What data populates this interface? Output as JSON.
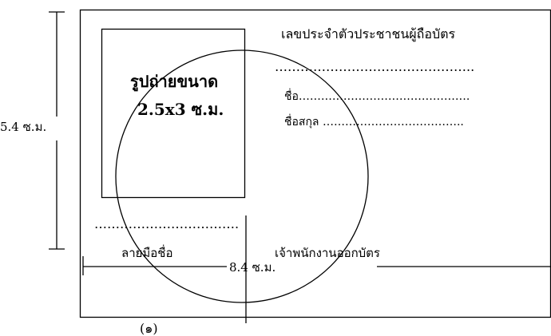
{
  "card": {
    "photo_label_line1": "รูปถ่ายขนาด",
    "photo_label_line2": "2.5x3 ซ.ม.",
    "id_label": "เลขประจำตัวประชาชนผู้ถือบัตร",
    "id_dots": "………………………………………..",
    "name_label": "ชื่อ……………………………………….",
    "surname_label": "ชื่อสกุล ………………………………..",
    "signature_dots": "…………………………….",
    "signature_label": "ลายมือชื่อ",
    "officer_label": "เจ้าพนักงานออกบัตร"
  },
  "dimensions": {
    "height_label": "5.4 ซ.ม.",
    "width_label": "8.4 ซ.ม."
  },
  "figure_number": "(๑)"
}
